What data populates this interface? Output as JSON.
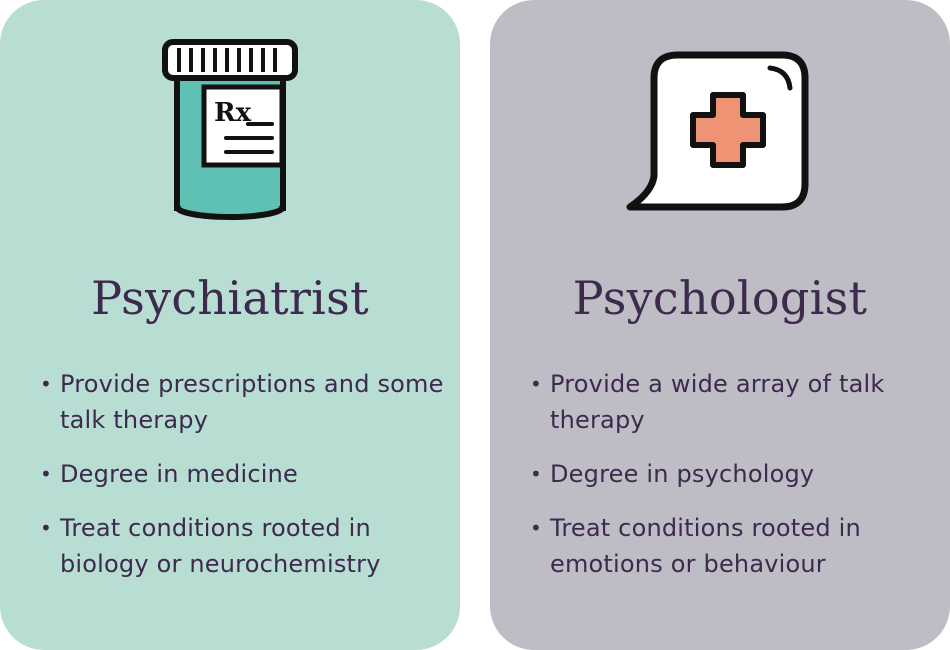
{
  "colors": {
    "left_card_bg": "#b8ddd3",
    "right_card_bg": "#bebdc6",
    "text": "#3d2a4d",
    "pill_teal": "#5fc1b3",
    "cross_orange": "#ee9373",
    "outline": "#111111"
  },
  "cards": [
    {
      "icon": "prescription-bottle-icon",
      "icon_label": "Rx",
      "title": "Psychiatrist",
      "points": [
        "Provide prescriptions and some talk therapy",
        "Degree in medicine",
        "Treat conditions rooted in biology or neurochemistry"
      ]
    },
    {
      "icon": "speech-bubble-medical-cross-icon",
      "title": "Psychologist",
      "points": [
        "Provide a wide array of talk therapy",
        "Degree in psychology",
        "Treat conditions rooted in emotions or behaviour"
      ]
    }
  ]
}
